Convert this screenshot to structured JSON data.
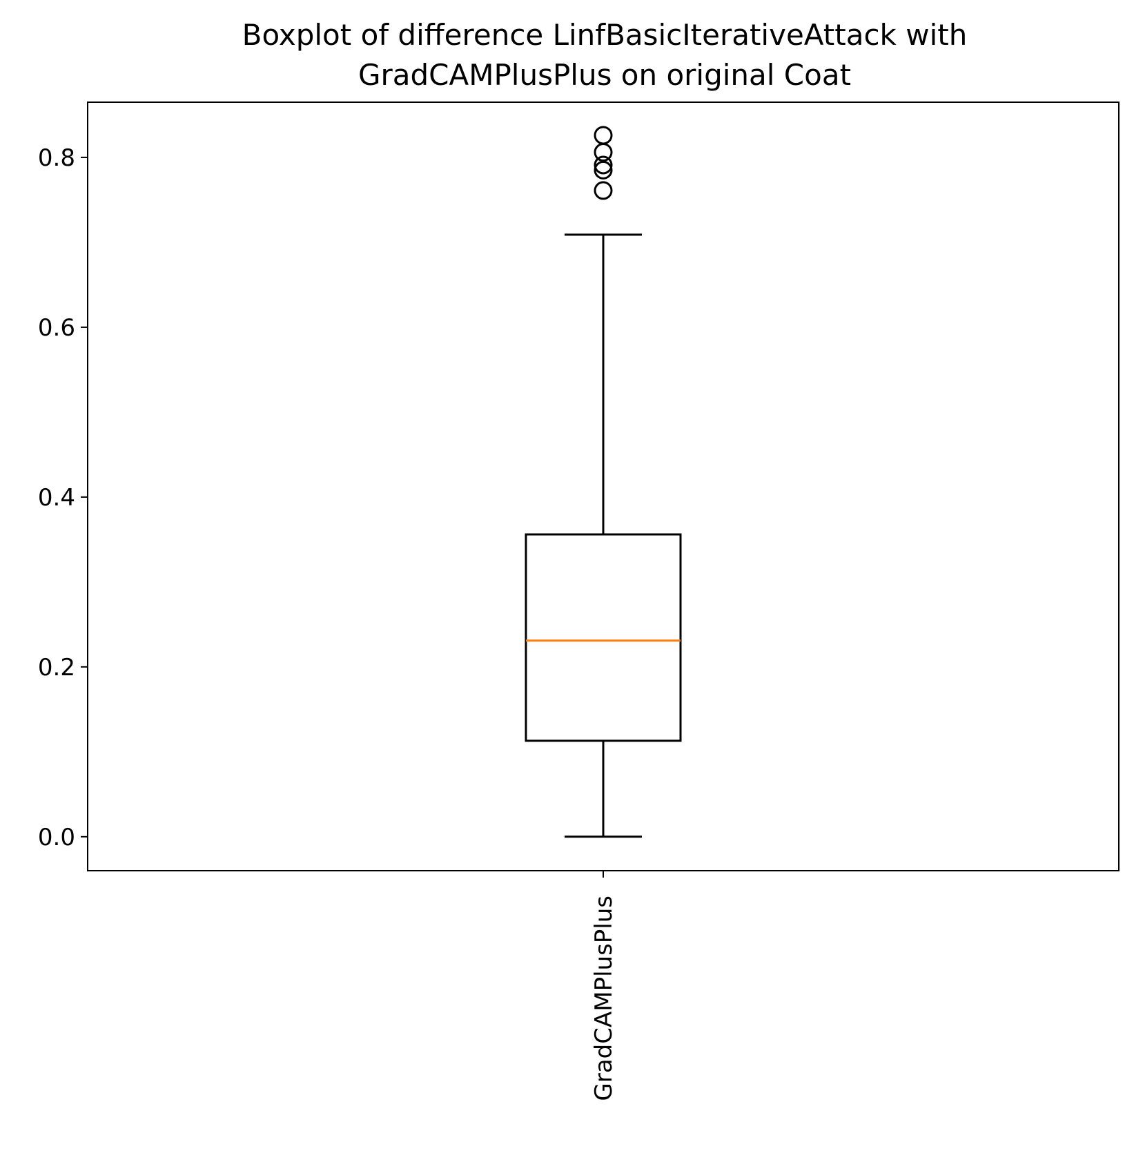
{
  "chart_data": {
    "type": "boxplot",
    "title_line1": "Boxplot of difference LinfBasicIterativeAttack with",
    "title_line2": "GradCAMPlusPlus on original Coat",
    "xlabel": "",
    "ylabel": "",
    "categories": [
      "GradCAMPlusPlus"
    ],
    "ylim": [
      -0.04,
      0.865
    ],
    "yticks": [
      0.0,
      0.2,
      0.4,
      0.6,
      0.8
    ],
    "ytick_labels": [
      "0.0",
      "0.2",
      "0.4",
      "0.6",
      "0.8"
    ],
    "grid": false,
    "boxes": [
      {
        "name": "GradCAMPlusPlus",
        "whisker_low": 0.0,
        "q1": 0.113,
        "median": 0.231,
        "q3": 0.356,
        "whisker_high": 0.709,
        "outliers": [
          0.761,
          0.785,
          0.791,
          0.806,
          0.826
        ]
      }
    ],
    "colors": {
      "box": "#000000",
      "median": "#ff7f0e",
      "axes": "#000000"
    }
  }
}
